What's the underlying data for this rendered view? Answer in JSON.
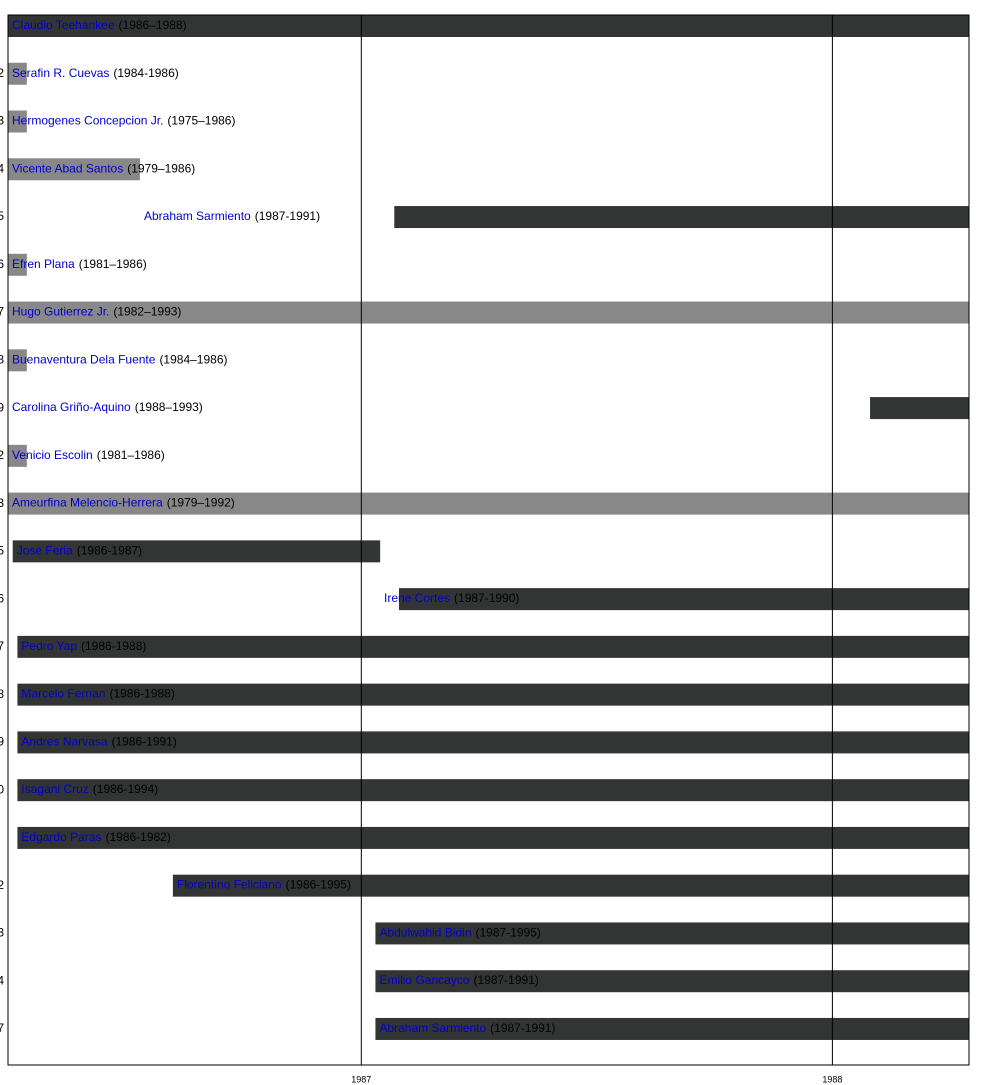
{
  "chart_data": {
    "type": "timeline",
    "xlim": [
      1986.25,
      1988.29
    ],
    "xticks": [
      1987,
      1988
    ],
    "grid": true,
    "rows": [
      {
        "seat": null,
        "name": "Claudio Teehankee",
        "years": "(1986–1988)",
        "start": 1986.25,
        "end": 1988.29,
        "color": "#333535"
      },
      {
        "seat": "2",
        "name": "Serafin R. Cuevas",
        "years": "(1984-1986)",
        "start": 1986.25,
        "end": 1986.29,
        "color": "#888888"
      },
      {
        "seat": "3",
        "name": "Hermogenes Concepcion Jr.",
        "years": "(1975–1986)",
        "start": 1986.25,
        "end": 1986.29,
        "color": "#888888"
      },
      {
        "seat": "4",
        "name": "Vicente Abad Santos",
        "years": "(1979–1986)",
        "start": 1986.25,
        "end": 1986.53,
        "color": "#888888"
      },
      {
        "seat": "5",
        "name": "Abraham Sarmiento",
        "years": "(1987-1991)",
        "start": 1987.07,
        "end": 1988.29,
        "color": "#333535"
      },
      {
        "seat": "6",
        "name": "Efren Plana",
        "years": "(1981–1986)",
        "start": 1986.25,
        "end": 1986.29,
        "color": "#888888"
      },
      {
        "seat": "7",
        "name": "Hugo Gutierrez Jr.",
        "years": "(1982–1993)",
        "start": 1986.25,
        "end": 1988.29,
        "color": "#888888"
      },
      {
        "seat": "8",
        "name": "Buenaventura Dela Fuente",
        "years": "(1984–1986)",
        "start": 1986.25,
        "end": 1986.29,
        "color": "#888888"
      },
      {
        "seat": "9",
        "name": "Carolina Griño-Aquino",
        "years": "(1988–1993)",
        "start": 1988.08,
        "end": 1988.29,
        "color": "#333535"
      },
      {
        "seat": "2",
        "name": "Venicio Escolin",
        "years": "(1981–1986)",
        "start": 1986.25,
        "end": 1986.29,
        "color": "#888888"
      },
      {
        "seat": "3",
        "name": "Ameurfina Melencio-Herrera",
        "years": "(1979–1992)",
        "start": 1986.25,
        "end": 1988.29,
        "color": "#888888"
      },
      {
        "seat": "5",
        "name": "Jose Feria",
        "years": "(1986-1987)",
        "start": 1986.26,
        "end": 1987.04,
        "color": "#333535"
      },
      {
        "seat": "6",
        "name": "Irene Cortes",
        "years": "(1987-1990)",
        "start": 1987.08,
        "end": 1988.29,
        "color": "#333535"
      },
      {
        "seat": "7",
        "name": "Pedro Yap",
        "years": "(1986-1988)",
        "start": 1986.27,
        "end": 1988.29,
        "color": "#333535"
      },
      {
        "seat": "8",
        "name": "Marcelo Fernan",
        "years": "(1986-1988)",
        "start": 1986.27,
        "end": 1988.29,
        "color": "#333535"
      },
      {
        "seat": "9",
        "name": "Andres Narvasa",
        "years": "(1986-1991)",
        "start": 1986.27,
        "end": 1988.29,
        "color": "#333535"
      },
      {
        "seat": "0",
        "name": "Isagani Cruz",
        "years": "(1986-1994)",
        "start": 1986.27,
        "end": 1988.29,
        "color": "#333535"
      },
      {
        "seat": null,
        "name": "Edgardo Paras",
        "years": "(1986-1982)",
        "start": 1986.27,
        "end": 1988.29,
        "color": "#333535"
      },
      {
        "seat": "2",
        "name": "Florentino Feliciano",
        "years": "(1986-1995)",
        "start": 1986.6,
        "end": 1988.29,
        "color": "#333535"
      },
      {
        "seat": "3",
        "name": "Abdulwahid Bidin",
        "years": "(1987-1995)",
        "start": 1987.03,
        "end": 1988.29,
        "color": "#333535"
      },
      {
        "seat": "4",
        "name": "Emilio Gancayco",
        "years": "(1987-1991)",
        "start": 1987.03,
        "end": 1988.29,
        "color": "#333535"
      },
      {
        "seat": "7",
        "name": "Abraham Sarmiento",
        "years": "(1987-1991)",
        "start": 1987.03,
        "end": 1988.29,
        "color": "#333535"
      }
    ]
  }
}
